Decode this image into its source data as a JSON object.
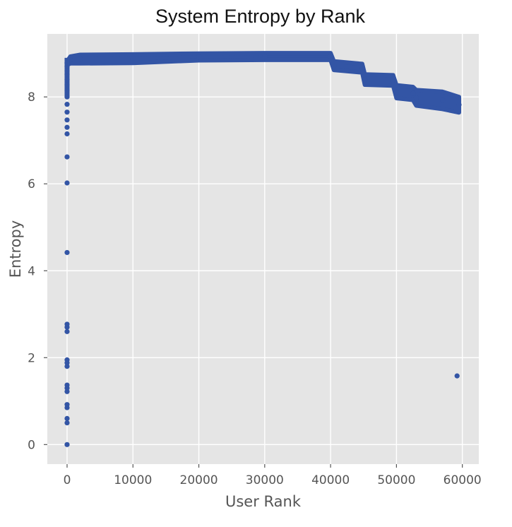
{
  "chart_data": {
    "type": "scatter",
    "title": "System Entropy by Rank",
    "xlabel": "User Rank",
    "ylabel": "Entropy",
    "xlim": [
      -3000,
      62500
    ],
    "ylim": [
      -0.45,
      9.45
    ],
    "xticks": [
      0,
      10000,
      20000,
      30000,
      40000,
      50000,
      60000
    ],
    "yticks": [
      0,
      2,
      4,
      6,
      8
    ],
    "grid": true,
    "background": "#e5e5e5",
    "grid_color": "#ffffff",
    "marker_color": "#3355a5",
    "outliers": [
      {
        "x": 0,
        "y": 0.0
      },
      {
        "x": 0,
        "y": 0.5
      },
      {
        "x": 0,
        "y": 0.6
      },
      {
        "x": 0,
        "y": 0.85
      },
      {
        "x": 0,
        "y": 0.92
      },
      {
        "x": 0,
        "y": 1.22
      },
      {
        "x": 0,
        "y": 1.3
      },
      {
        "x": 0,
        "y": 1.37
      },
      {
        "x": 0,
        "y": 1.8
      },
      {
        "x": 0,
        "y": 1.88
      },
      {
        "x": 0,
        "y": 1.95
      },
      {
        "x": 0,
        "y": 2.6
      },
      {
        "x": 0,
        "y": 2.7
      },
      {
        "x": 0,
        "y": 2.77
      },
      {
        "x": 0,
        "y": 4.42
      },
      {
        "x": 0,
        "y": 6.02
      },
      {
        "x": 0,
        "y": 6.62
      },
      {
        "x": 0,
        "y": 7.15
      },
      {
        "x": 0,
        "y": 7.3
      },
      {
        "x": 0,
        "y": 7.47
      },
      {
        "x": 0,
        "y": 7.65
      },
      {
        "x": 0,
        "y": 7.83
      },
      {
        "x": 0,
        "y": 8.0
      },
      {
        "x": 0,
        "y": 8.15
      },
      {
        "x": 0,
        "y": 8.28
      },
      {
        "x": 0,
        "y": 8.4
      },
      {
        "x": 0,
        "y": 8.52
      },
      {
        "x": 0,
        "y": 8.6
      },
      {
        "x": 0,
        "y": 8.7
      },
      {
        "x": 0,
        "y": 8.78
      },
      {
        "x": 59200,
        "y": 1.58
      }
    ],
    "trend": [
      {
        "x": 0,
        "y": 8.78,
        "spread": 0.04
      },
      {
        "x": 500,
        "y": 8.85,
        "spread": 0.08
      },
      {
        "x": 2000,
        "y": 8.87,
        "spread": 0.1
      },
      {
        "x": 10000,
        "y": 8.88,
        "spread": 0.1
      },
      {
        "x": 20000,
        "y": 8.92,
        "spread": 0.08
      },
      {
        "x": 30000,
        "y": 8.93,
        "spread": 0.08
      },
      {
        "x": 40000,
        "y": 8.93,
        "spread": 0.08
      },
      {
        "x": 40500,
        "y": 8.72,
        "spread": 0.1
      },
      {
        "x": 44800,
        "y": 8.66,
        "spread": 0.1
      },
      {
        "x": 45200,
        "y": 8.4,
        "spread": 0.12
      },
      {
        "x": 49500,
        "y": 8.38,
        "spread": 0.12
      },
      {
        "x": 50000,
        "y": 8.12,
        "spread": 0.15
      },
      {
        "x": 52500,
        "y": 8.08,
        "spread": 0.15
      },
      {
        "x": 53000,
        "y": 7.98,
        "spread": 0.18
      },
      {
        "x": 57000,
        "y": 7.92,
        "spread": 0.2
      },
      {
        "x": 59500,
        "y": 7.82,
        "spread": 0.18
      }
    ]
  }
}
